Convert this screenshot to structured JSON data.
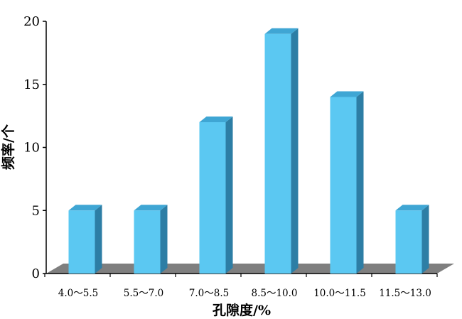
{
  "chart_data": {
    "type": "bar",
    "categories": [
      "4.0～5.5",
      "5.5～7.0",
      "7.0～8.5",
      "8.5～10.0",
      "10.0～11.5",
      "11.5～13.0"
    ],
    "values": [
      5,
      5,
      12,
      19,
      14,
      5
    ],
    "xlabel": "孔隙度/%",
    "ylabel": "频率/个",
    "ylim": [
      0,
      20
    ],
    "yticks": [
      0,
      5,
      10,
      15,
      20
    ],
    "grid": false,
    "style": "3d-bars",
    "colors": {
      "bar_front": "#5bc8f2",
      "bar_top": "#3fa6d4",
      "bar_side": "#2d7ea5",
      "floor": "#7f7f7f"
    }
  }
}
